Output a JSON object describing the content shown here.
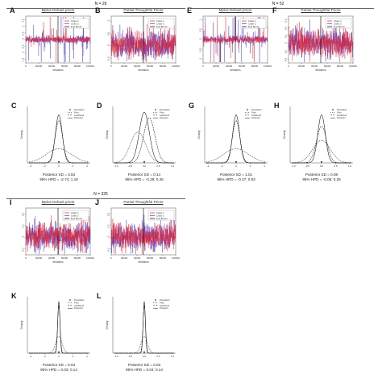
{
  "colors": {
    "chain1": "#e8222a",
    "chain2": "#3a3ad6",
    "burnin": "#000000"
  },
  "groups": [
    {
      "title": "N = 26",
      "trace_panels": [
        {
          "letter": "A",
          "title": "Mplus Default priors",
          "kind": "trace",
          "variant": "spiky",
          "yticks": [
            "1.5",
            "1",
            "0.5",
            "0",
            "-0.5",
            "-1",
            "-1.5"
          ],
          "ylim": [
            -1.8,
            1.8
          ]
        },
        {
          "letter": "B",
          "title": "Partial Thoughtful Priors",
          "kind": "trace",
          "variant": "wide",
          "yticks": [
            "1",
            "0.5",
            "0",
            "-0.5"
          ],
          "ylim": [
            -0.7,
            1.2
          ]
        }
      ],
      "density_panels": [
        {
          "letter": "C",
          "variant": "narrow",
          "xticks": [
            "-4",
            "-2",
            "0",
            "2",
            "4"
          ],
          "sd_text": "Posterior SD = 3.53",
          "hpd_text": "95% HPD = -2.74; 1.19"
        },
        {
          "letter": "D",
          "variant": "split",
          "xticks": [
            "-1.0",
            "-0.5",
            "0.0",
            "0.5",
            "1.0"
          ],
          "sd_text": "Posterior SD = 0.14",
          "hpd_text": "95% HPD = -0.29; 0.26"
        }
      ]
    },
    {
      "title": "N = 52",
      "trace_panels": [
        {
          "letter": "E",
          "title": "Mplus Default priors",
          "kind": "trace",
          "variant": "spiky",
          "yticks": [
            "1",
            "0.5",
            "0",
            "-0.5",
            "-1"
          ],
          "ylim": [
            -1.2,
            1.2
          ]
        },
        {
          "letter": "F",
          "title": "Partial Thoughtful Priors",
          "kind": "trace",
          "variant": "wide",
          "yticks": [
            "0.6",
            "0.4",
            "0.2",
            "0",
            "-0.2",
            "-0.4"
          ],
          "ylim": [
            -0.5,
            0.7
          ]
        }
      ],
      "density_panels": [
        {
          "letter": "G",
          "variant": "narrow",
          "xticks": [
            "-4",
            "-2",
            "0",
            "2",
            "4"
          ],
          "sd_text": "Posterior SD = 1.01",
          "hpd_text": "95% HPD = -0.27; 0.93"
        },
        {
          "letter": "H",
          "variant": "wide",
          "xticks": [
            "-1.0",
            "-0.5",
            "0.0",
            "0.5",
            "1.0"
          ],
          "sd_text": "Posterior SD = 0.08",
          "hpd_text": "95% HPD = -0.06; 0.25"
        }
      ]
    },
    {
      "title": "N = 325",
      "trace_panels": [
        {
          "letter": "I",
          "title": "Mplus Default priors",
          "kind": "trace",
          "variant": "wide",
          "yticks": [
            "0.2",
            "0.1",
            "0",
            "-0.1"
          ],
          "ylim": [
            -0.15,
            0.25
          ]
        },
        {
          "letter": "J",
          "title": "Partial Thoughtful Priors",
          "kind": "trace",
          "variant": "wide",
          "yticks": [
            "0.2",
            "0.1",
            "0",
            "-0.1"
          ],
          "ylim": [
            -0.15,
            0.25
          ]
        }
      ],
      "density_panels": [
        {
          "letter": "K",
          "variant": "verynarrow",
          "xticks": [
            "-4",
            "-2",
            "0",
            "2",
            "4"
          ],
          "sd_text": "Posterior SD = 0.03",
          "hpd_text": "95% HPD = 0.03; 0.14"
        },
        {
          "letter": "L",
          "variant": "verynarrow",
          "xticks": [
            "-1.0",
            "-0.5",
            "0.0",
            "0.5",
            "1.0"
          ],
          "sd_text": "Posterior SD = 0.03",
          "hpd_text": "95% HPD = 0.04; 0.14"
        }
      ]
    }
  ],
  "trace_common": {
    "xlabel": "Iterations",
    "xticks": [
      "0",
      "20000",
      "40000",
      "60000",
      "80000",
      "100000"
    ],
    "legend": [
      "Chain 1",
      "Chain 2",
      "End Burnin"
    ]
  },
  "density_common": {
    "ylabel": "Density",
    "legend": [
      "Population",
      "Prior",
      "Likelihood",
      "Posterior"
    ]
  },
  "chart_data": [
    {
      "type": "line",
      "panel": "A",
      "title": "Mplus Default priors",
      "xlabel": "Iterations",
      "xlim": [
        0,
        100000
      ],
      "series": [
        {
          "name": "Chain 1"
        },
        {
          "name": "Chain 2"
        },
        {
          "name": "End Burnin",
          "x": 50000
        }
      ]
    },
    {
      "type": "line",
      "panel": "B",
      "title": "Partial Thoughtful Priors",
      "xlabel": "Iterations",
      "xlim": [
        0,
        100000
      ],
      "series": [
        {
          "name": "Chain 1"
        },
        {
          "name": "Chain 2"
        },
        {
          "name": "End Burnin",
          "x": 50000
        }
      ]
    },
    {
      "type": "line",
      "panel": "C",
      "ylabel": "Density",
      "xlim": [
        -4,
        4
      ],
      "series": [
        {
          "name": "Population"
        },
        {
          "name": "Prior"
        },
        {
          "name": "Likelihood"
        },
        {
          "name": "Posterior"
        }
      ],
      "annotation": [
        "Posterior SD = 3.53",
        "95% HPD = -2.74; 1.19"
      ]
    },
    {
      "type": "line",
      "panel": "D",
      "ylabel": "Density",
      "xlim": [
        -1,
        1
      ],
      "series": [
        {
          "name": "Population"
        },
        {
          "name": "Prior"
        },
        {
          "name": "Likelihood"
        },
        {
          "name": "Posterior"
        }
      ],
      "annotation": [
        "Posterior SD = 0.14",
        "95% HPD = -0.29; 0.26"
      ]
    },
    {
      "type": "line",
      "panel": "E",
      "title": "Mplus Default priors",
      "xlabel": "Iterations",
      "xlim": [
        0,
        100000
      ],
      "series": [
        {
          "name": "Chain 1"
        },
        {
          "name": "Chain 2"
        },
        {
          "name": "End Burnin",
          "x": 50000
        }
      ]
    },
    {
      "type": "line",
      "panel": "F",
      "title": "Partial Thoughtful Priors",
      "xlabel": "Iterations",
      "xlim": [
        0,
        100000
      ],
      "series": [
        {
          "name": "Chain 1"
        },
        {
          "name": "Chain 2"
        },
        {
          "name": "End Burnin",
          "x": 50000
        }
      ]
    },
    {
      "type": "line",
      "panel": "G",
      "ylabel": "Density",
      "xlim": [
        -4,
        4
      ],
      "series": [
        {
          "name": "Population"
        },
        {
          "name": "Prior"
        },
        {
          "name": "Likelihood"
        },
        {
          "name": "Posterior"
        }
      ],
      "annotation": [
        "Posterior SD = 1.01",
        "95% HPD = -0.27; 0.93"
      ]
    },
    {
      "type": "line",
      "panel": "H",
      "ylabel": "Density",
      "xlim": [
        -1,
        1
      ],
      "series": [
        {
          "name": "Population"
        },
        {
          "name": "Prior"
        },
        {
          "name": "Likelihood"
        },
        {
          "name": "Posterior"
        }
      ],
      "annotation": [
        "Posterior SD = 0.08",
        "95% HPD = -0.06; 0.25"
      ]
    },
    {
      "type": "line",
      "panel": "I",
      "title": "Mplus Default priors",
      "xlabel": "Iterations",
      "xlim": [
        0,
        100000
      ],
      "series": [
        {
          "name": "Chain 1"
        },
        {
          "name": "Chain 2"
        },
        {
          "name": "End Burnin",
          "x": 50000
        }
      ]
    },
    {
      "type": "line",
      "panel": "J",
      "title": "Partial Thoughtful Priors",
      "xlabel": "Iterations",
      "xlim": [
        0,
        100000
      ],
      "series": [
        {
          "name": "Chain 1"
        },
        {
          "name": "Chain 2"
        },
        {
          "name": "End Burnin",
          "x": 50000
        }
      ]
    },
    {
      "type": "line",
      "panel": "K",
      "ylabel": "Density",
      "xlim": [
        -4,
        4
      ],
      "series": [
        {
          "name": "Population"
        },
        {
          "name": "Prior"
        },
        {
          "name": "Likelihood"
        },
        {
          "name": "Posterior"
        }
      ],
      "annotation": [
        "Posterior SD = 0.03",
        "95% HPD = 0.03; 0.14"
      ]
    },
    {
      "type": "line",
      "panel": "L",
      "ylabel": "Density",
      "xlim": [
        -1,
        1
      ],
      "series": [
        {
          "name": "Population"
        },
        {
          "name": "Prior"
        },
        {
          "name": "Likelihood"
        },
        {
          "name": "Posterior"
        }
      ],
      "annotation": [
        "Posterior SD = 0.03",
        "95% HPD = 0.04; 0.14"
      ]
    }
  ]
}
